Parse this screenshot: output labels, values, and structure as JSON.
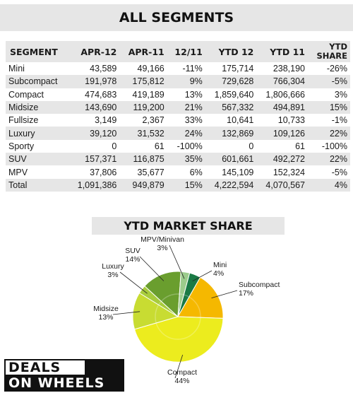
{
  "title_all": "ALL SEGMENTS",
  "title_share": "YTD MARKET SHARE",
  "logo": {
    "line1": "DEALS",
    "line2": "ON WHEELS"
  },
  "table": {
    "headers": [
      "SEGMENT",
      "APR-12",
      "APR-11",
      "12/11",
      "YTD 12",
      "YTD 11",
      "YTD SHARE"
    ],
    "rows": [
      [
        "Mini",
        "43,589",
        "49,166",
        "-11%",
        "175,714",
        "238,190",
        "-26%"
      ],
      [
        "Subcompact",
        "191,978",
        "175,812",
        "9%",
        "729,628",
        "766,304",
        "-5%"
      ],
      [
        "Compact",
        "474,683",
        "419,189",
        "13%",
        "1,859,640",
        "1,806,666",
        "3%"
      ],
      [
        "Midsize",
        "143,690",
        "119,200",
        "21%",
        "567,332",
        "494,891",
        "15%"
      ],
      [
        "Fullsize",
        "3,149",
        "2,367",
        "33%",
        "10,641",
        "10,733",
        "-1%"
      ],
      [
        "Luxury",
        "39,120",
        "31,532",
        "24%",
        "132,869",
        "109,126",
        "22%"
      ],
      [
        "Sporty",
        "0",
        "61",
        "-100%",
        "0",
        "61",
        "-100%"
      ],
      [
        "SUV",
        "157,371",
        "116,875",
        "35%",
        "601,661",
        "492,272",
        "22%"
      ],
      [
        "MPV",
        "37,806",
        "35,677",
        "6%",
        "145,109",
        "152,324",
        "-5%"
      ],
      [
        "Total",
        "1,091,386",
        "949,879",
        "15%",
        "4,222,594",
        "4,070,567",
        "4%"
      ]
    ]
  },
  "chart_data": {
    "type": "pie",
    "title": "YTD MARKET SHARE",
    "slices": [
      {
        "label": "Mini",
        "value": 4,
        "display": "4%",
        "color": "#1a7a45"
      },
      {
        "label": "Subcompact",
        "value": 17,
        "display": "17%",
        "color": "#f5b800"
      },
      {
        "label": "Compact",
        "value": 44,
        "display": "44%",
        "color": "#ecec1e"
      },
      {
        "label": "Midsize",
        "value": 13,
        "display": "13%",
        "color": "#c8dc32"
      },
      {
        "label": "Luxury",
        "value": 3,
        "display": "3%",
        "color": "#a8cc3c"
      },
      {
        "label": "SUV",
        "value": 14,
        "display": "14%",
        "color": "#6a9e2e"
      },
      {
        "label": "MPV/Minivan",
        "value": 3,
        "display": "3%",
        "color": "#9ccc8c"
      }
    ]
  }
}
